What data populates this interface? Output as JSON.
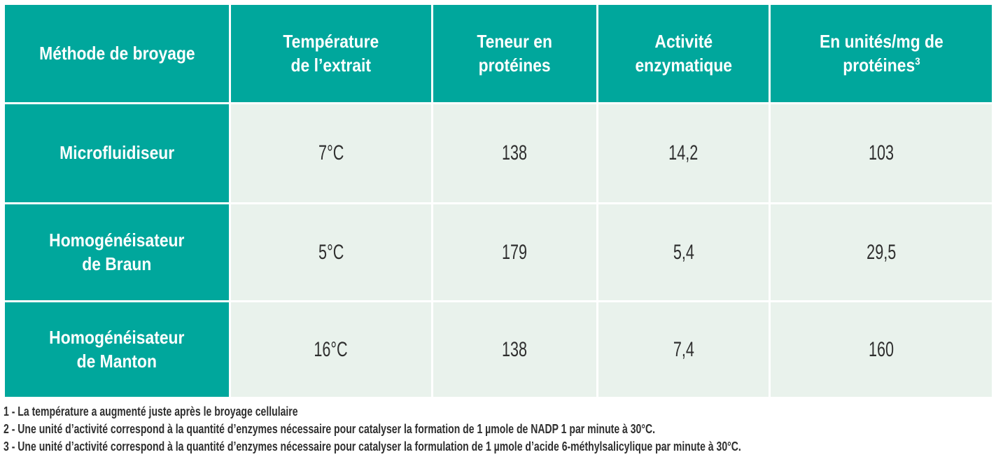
{
  "colors": {
    "teal": "#00a79c",
    "mint": "#e9f2ec",
    "header_text": "#ffffff",
    "body_text": "#2f2f2f"
  },
  "table": {
    "headers": {
      "method": "Méthode de broyage",
      "temperature": "Température\nde l’extrait",
      "protein_content": "Teneur en\nprotéines",
      "enzymatic_activity": "Activité\nenzymatique",
      "units_per_mg": "En unités/mg de\nprotéines",
      "units_per_mg_superscript": "3"
    },
    "rows": [
      {
        "method": "Microfluidiseur",
        "temperature": "7°C",
        "protein_content": "138",
        "enzymatic_activity": "14,2",
        "units_per_mg": "103"
      },
      {
        "method": "Homogénéisateur\nde Braun",
        "temperature": "5°C",
        "protein_content": "179",
        "enzymatic_activity": "5,4",
        "units_per_mg": "29,5"
      },
      {
        "method": "Homogénéisateur\nde Manton",
        "temperature": "16°C",
        "protein_content": "138",
        "enzymatic_activity": "7,4",
        "units_per_mg": "160"
      }
    ]
  },
  "footnotes": [
    "1 - La température a augmenté juste après le broyage cellulaire",
    "2 - Une unité d’activité correspond à la quantité d’enzymes nécessaire pour catalyser la formation de 1 µmole de NADP 1 par minute à 30°C.",
    "3 - Une unité d’activité correspond à la quantité d’enzymes nécessaire pour catalyser la formulation de 1 µmole d’acide 6-méthylsalicylique par minute à 30°C."
  ]
}
